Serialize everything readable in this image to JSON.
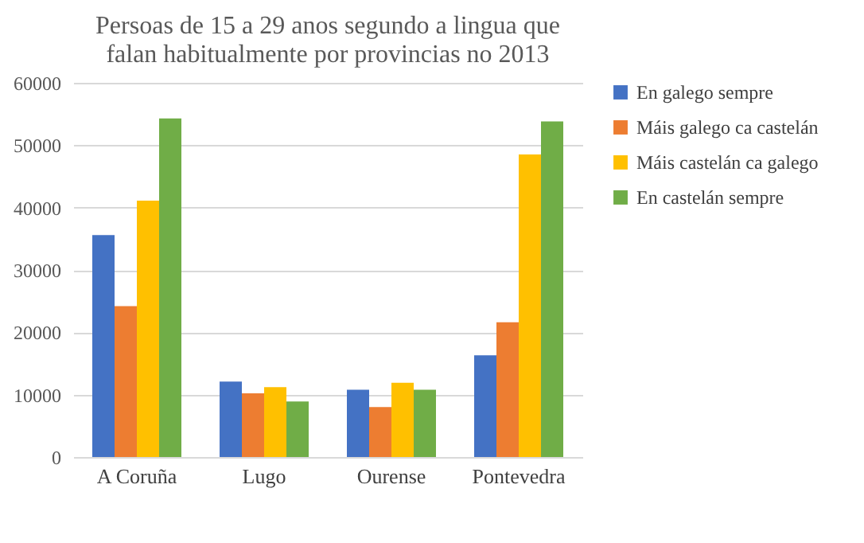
{
  "chart_data": {
    "type": "bar",
    "title": "Persoas de 15 a 29 anos segundo a lingua que falan habitualmente por provincias no 2013",
    "categories": [
      "A Coruña",
      "Lugo",
      "Ourense",
      "Pontevedra"
    ],
    "series": [
      {
        "name": "En galego sempre",
        "color": "#4472c4",
        "values": [
          35600,
          12100,
          10800,
          16300
        ]
      },
      {
        "name": "Máis galego ca castelán",
        "color": "#ed7d31",
        "values": [
          24200,
          10200,
          8000,
          21600
        ]
      },
      {
        "name": "Máis castelán ca galego",
        "color": "#ffc000",
        "values": [
          41100,
          11200,
          11900,
          48500
        ]
      },
      {
        "name": "En castelán sempre",
        "color": "#70ad47",
        "values": [
          54300,
          8900,
          10800,
          53800
        ]
      }
    ],
    "ylim": [
      0,
      60000
    ],
    "yticks": [
      0,
      10000,
      20000,
      30000,
      40000,
      50000,
      60000
    ],
    "grid": "y",
    "legend": "right"
  }
}
